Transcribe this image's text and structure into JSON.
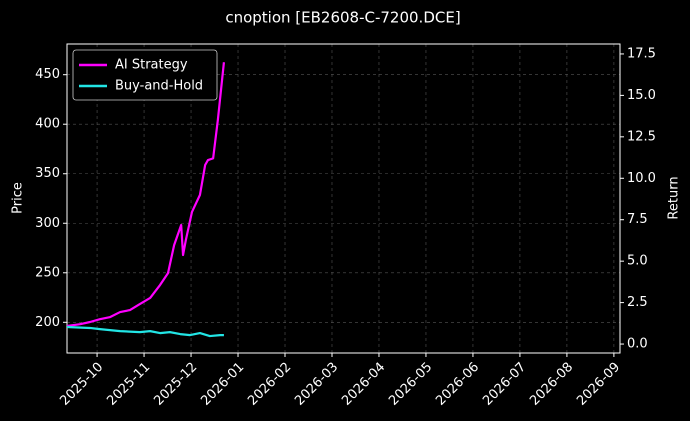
{
  "chart_data": {
    "type": "line",
    "title": "cnoption [EB2608-C-7200.DCE]",
    "ylabel": "Price",
    "y2label": "Return",
    "ylim": [
      169,
      481
    ],
    "yticks": [
      200,
      250,
      300,
      350,
      400,
      450
    ],
    "y2lim": [
      -0.54,
      18.1
    ],
    "y2ticks": [
      {
        "value": 0,
        "label": "0.0"
      },
      2.5,
      {
        "value": 5,
        "label": "5.0"
      },
      7.5,
      {
        "value": 10,
        "label": "10.0"
      },
      12.5,
      {
        "value": 15,
        "label": "15.0"
      },
      17.5
    ],
    "xlim": [
      -0.64,
      11.13
    ],
    "xticks": [
      {
        "value": 0,
        "label": "2025-10"
      },
      {
        "value": 1,
        "label": "2025-11"
      },
      {
        "value": 2,
        "label": "2025-12"
      },
      {
        "value": 3,
        "label": "2026-01"
      },
      {
        "value": 4,
        "label": "2026-02"
      },
      {
        "value": 5,
        "label": "2026-03"
      },
      {
        "value": 6,
        "label": "2026-04"
      },
      {
        "value": 7,
        "label": "2026-05"
      },
      {
        "value": 8,
        "label": "2026-06"
      },
      {
        "value": 9,
        "label": "2026-07"
      },
      {
        "value": 10,
        "label": "2026-08"
      },
      {
        "value": 11,
        "label": "2026-09"
      }
    ],
    "grid": true,
    "legend": "upper-left",
    "series": [
      {
        "name": "AI Strategy",
        "color": "#ff00ff",
        "axis": "y2",
        "x": [
          -0.64,
          -0.36,
          -0.15,
          0.06,
          0.28,
          0.49,
          0.7,
          0.91,
          1.13,
          1.34,
          1.51,
          1.64,
          1.79,
          1.83,
          1.89,
          2.02,
          2.19,
          2.3,
          2.36,
          2.47,
          2.57,
          2.7
        ],
        "values": [
          1.09,
          1.2,
          1.33,
          1.5,
          1.63,
          1.93,
          2.05,
          2.41,
          2.78,
          3.56,
          4.28,
          5.97,
          7.18,
          5.37,
          6.28,
          7.97,
          9.0,
          10.8,
          11.1,
          11.2,
          13.5,
          17.0
        ]
      },
      {
        "name": "Buy-and-Hold",
        "color": "#22e5e5",
        "axis": "y2",
        "x": [
          -0.64,
          -0.15,
          0.06,
          0.49,
          0.91,
          1.13,
          1.34,
          1.55,
          1.77,
          1.98,
          2.19,
          2.4,
          2.62,
          2.7
        ],
        "values": [
          1.03,
          0.97,
          0.9,
          0.78,
          0.72,
          0.78,
          0.66,
          0.72,
          0.6,
          0.54,
          0.66,
          0.48,
          0.54,
          0.54
        ]
      }
    ]
  }
}
